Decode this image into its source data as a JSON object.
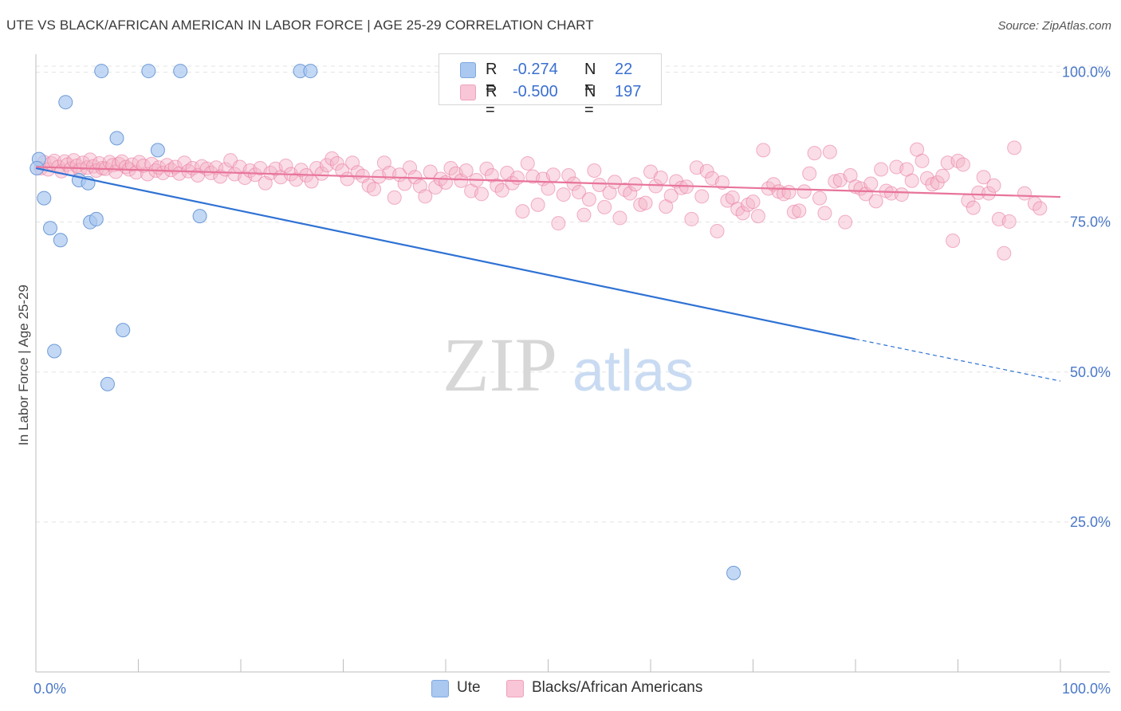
{
  "title": "UTE VS BLACK/AFRICAN AMERICAN IN LABOR FORCE | AGE 25-29 CORRELATION CHART",
  "source": "Source: ZipAtlas.com",
  "watermark": {
    "zip": "ZIP",
    "atlas": "atlas"
  },
  "colors": {
    "ute": "#aac8f0",
    "ute_line": "#2f72d4",
    "black": "#f4b3c8",
    "black_line": "#e8749a",
    "tick": "#4a78c8"
  },
  "legend": {
    "r_label": "R =",
    "n_label": "N =",
    "ute": {
      "r": "-0.274",
      "n": "22"
    },
    "black": {
      "r": "-0.500",
      "n": "197"
    }
  },
  "bottom_legend": {
    "ute": "Ute",
    "black": "Blacks/African Americans"
  },
  "chart_data": {
    "type": "scatter",
    "title": "UTE VS BLACK/AFRICAN AMERICAN IN LABOR FORCE | AGE 25-29 CORRELATION CHART",
    "xlabel": "",
    "ylabel": "In Labor Force | Age 25-29",
    "xlim": [
      0,
      100
    ],
    "ylim": [
      0,
      103
    ],
    "x_tick_labels": [
      "0.0%",
      "100.0%"
    ],
    "y_ticks": [
      25,
      50,
      75,
      100
    ],
    "y_tick_labels": [
      "25.0%",
      "50.0%",
      "75.0%",
      "100.0%"
    ],
    "grid": true,
    "legend_position": "top-center",
    "series": [
      {
        "name": "Ute",
        "points": [
          [
            0.3,
            85.5
          ],
          [
            0.8,
            79
          ],
          [
            1.4,
            74
          ],
          [
            1.8,
            53.5
          ],
          [
            2.4,
            72
          ],
          [
            2.9,
            95
          ],
          [
            4.2,
            82
          ],
          [
            5.1,
            81.5
          ],
          [
            5.3,
            75
          ],
          [
            5.9,
            75.5
          ],
          [
            6.4,
            100.2
          ],
          [
            7,
            48
          ],
          [
            7.9,
            89
          ],
          [
            8.5,
            57
          ],
          [
            11,
            100.2
          ],
          [
            11.9,
            87
          ],
          [
            14.1,
            100.2
          ],
          [
            16,
            76
          ],
          [
            25.8,
            100.2
          ],
          [
            26.8,
            100.2
          ],
          [
            68.1,
            16.5
          ],
          [
            0.1,
            84
          ]
        ],
        "trend": {
          "x": [
            0,
            80
          ],
          "y": [
            84,
            55.5
          ],
          "dashed_to": [
            100,
            48.5
          ]
        }
      },
      {
        "name": "Blacks/African Americans",
        "points": [
          [
            0.5,
            84
          ],
          [
            0.8,
            85
          ],
          [
            1.2,
            83.8
          ],
          [
            1.5,
            84.8
          ],
          [
            1.8,
            85.2
          ],
          [
            2.2,
            84.2
          ],
          [
            2.5,
            83.5
          ],
          [
            2.8,
            85.1
          ],
          [
            3.1,
            84.6
          ],
          [
            3.4,
            83.9
          ],
          [
            3.7,
            85.3
          ],
          [
            4.0,
            84.4
          ],
          [
            4.3,
            83.7
          ],
          [
            4.6,
            84.9
          ],
          [
            5.0,
            84.1
          ],
          [
            5.3,
            85.4
          ],
          [
            5.6,
            84.3
          ],
          [
            5.9,
            83.6
          ],
          [
            6.2,
            84.8
          ],
          [
            6.5,
            84.0
          ],
          [
            6.8,
            83.9
          ],
          [
            7.2,
            85.0
          ],
          [
            7.5,
            84.5
          ],
          [
            7.8,
            83.4
          ],
          [
            8.1,
            84.7
          ],
          [
            8.4,
            85.1
          ],
          [
            8.8,
            84.2
          ],
          [
            9.1,
            83.8
          ],
          [
            9.4,
            84.6
          ],
          [
            9.8,
            83.3
          ],
          [
            10.1,
            85.0
          ],
          [
            10.5,
            84.4
          ],
          [
            10.9,
            83.0
          ],
          [
            11.3,
            84.7
          ],
          [
            11.7,
            83.6
          ],
          [
            12.0,
            84.1
          ],
          [
            12.4,
            83.2
          ],
          [
            12.8,
            84.5
          ],
          [
            13.2,
            83.7
          ],
          [
            13.6,
            84.2
          ],
          [
            14.0,
            83.1
          ],
          [
            14.5,
            84.9
          ],
          [
            14.9,
            83.5
          ],
          [
            15.3,
            84.0
          ],
          [
            15.8,
            82.8
          ],
          [
            16.2,
            84.3
          ],
          [
            16.7,
            83.9
          ],
          [
            17.1,
            83.2
          ],
          [
            17.6,
            84.1
          ],
          [
            18.0,
            82.6
          ],
          [
            18.5,
            83.8
          ],
          [
            19.0,
            85.3
          ],
          [
            19.4,
            83.0
          ],
          [
            19.9,
            84.2
          ],
          [
            20.4,
            82.4
          ],
          [
            20.9,
            83.6
          ],
          [
            21.4,
            82.9
          ],
          [
            21.9,
            84.0
          ],
          [
            22.4,
            81.5
          ],
          [
            22.9,
            83.2
          ],
          [
            23.4,
            83.9
          ],
          [
            23.9,
            82.5
          ],
          [
            24.4,
            84.4
          ],
          [
            24.9,
            83.0
          ],
          [
            25.4,
            82.1
          ],
          [
            25.9,
            83.7
          ],
          [
            26.4,
            82.8
          ],
          [
            26.9,
            81.8
          ],
          [
            27.4,
            84.0
          ],
          [
            27.9,
            83.1
          ],
          [
            28.4,
            84.5
          ],
          [
            28.9,
            85.6
          ],
          [
            29.4,
            84.8
          ],
          [
            29.9,
            83.6
          ],
          [
            30.4,
            82.2
          ],
          [
            30.9,
            84.9
          ],
          [
            31.4,
            83.3
          ],
          [
            31.9,
            82.7
          ],
          [
            32.5,
            81.1
          ],
          [
            33.0,
            80.5
          ],
          [
            33.5,
            82.6
          ],
          [
            34.0,
            84.9
          ],
          [
            34.5,
            83.2
          ],
          [
            35.0,
            79.1
          ],
          [
            35.5,
            82.9
          ],
          [
            36.0,
            81.4
          ],
          [
            36.5,
            84.1
          ],
          [
            37.0,
            82.5
          ],
          [
            37.5,
            81.0
          ],
          [
            38.0,
            79.3
          ],
          [
            38.5,
            83.4
          ],
          [
            39.0,
            80.8
          ],
          [
            39.5,
            82.2
          ],
          [
            40.0,
            81.6
          ],
          [
            40.5,
            84.0
          ],
          [
            41.0,
            83.1
          ],
          [
            41.5,
            81.9
          ],
          [
            42.0,
            83.6
          ],
          [
            42.5,
            80.2
          ],
          [
            43.0,
            82.0
          ],
          [
            43.5,
            79.7
          ],
          [
            44.0,
            83.9
          ],
          [
            44.5,
            82.8
          ],
          [
            45.0,
            81.1
          ],
          [
            45.5,
            80.3
          ],
          [
            46.0,
            83.2
          ],
          [
            46.5,
            81.5
          ],
          [
            47.0,
            82.4
          ],
          [
            47.5,
            76.8
          ],
          [
            48.0,
            84.8
          ],
          [
            48.5,
            82.6
          ],
          [
            49.0,
            77.9
          ],
          [
            49.5,
            82.2
          ],
          [
            50.0,
            80.6
          ],
          [
            50.5,
            82.9
          ],
          [
            51.0,
            74.8
          ],
          [
            51.5,
            79.6
          ],
          [
            52.0,
            82.8
          ],
          [
            52.5,
            81.4
          ],
          [
            53.0,
            80.0
          ],
          [
            53.5,
            76.2
          ],
          [
            54.0,
            78.8
          ],
          [
            54.5,
            83.6
          ],
          [
            55.0,
            81.2
          ],
          [
            55.5,
            77.5
          ],
          [
            56.0,
            79.9
          ],
          [
            56.5,
            81.7
          ],
          [
            57.0,
            75.7
          ],
          [
            57.5,
            80.4
          ],
          [
            58.0,
            79.8
          ],
          [
            58.5,
            81.3
          ],
          [
            59.0,
            77.9
          ],
          [
            59.5,
            78.2
          ],
          [
            60.0,
            83.4
          ],
          [
            60.5,
            81.0
          ],
          [
            61.0,
            82.4
          ],
          [
            61.5,
            77.6
          ],
          [
            62.0,
            79.4
          ],
          [
            62.5,
            81.8
          ],
          [
            63.0,
            80.7
          ],
          [
            63.5,
            80.9
          ],
          [
            64.0,
            75.5
          ],
          [
            64.5,
            84.1
          ],
          [
            65.0,
            79.3
          ],
          [
            65.5,
            83.5
          ],
          [
            66.0,
            82.3
          ],
          [
            66.5,
            73.5
          ],
          [
            67.0,
            81.6
          ],
          [
            67.5,
            78.6
          ],
          [
            68.0,
            79.1
          ],
          [
            68.5,
            77.2
          ],
          [
            69.0,
            76.5
          ],
          [
            69.5,
            77.9
          ],
          [
            70.0,
            78.4
          ],
          [
            70.5,
            76.0
          ],
          [
            71.0,
            87.0
          ],
          [
            71.5,
            80.6
          ],
          [
            72.0,
            81.3
          ],
          [
            72.5,
            80.1
          ],
          [
            73.0,
            79.7
          ],
          [
            73.5,
            80.0
          ],
          [
            74.0,
            76.7
          ],
          [
            74.5,
            76.9
          ],
          [
            75.0,
            80.1
          ],
          [
            75.5,
            83.1
          ],
          [
            76.0,
            86.5
          ],
          [
            76.5,
            79.0
          ],
          [
            77.0,
            76.5
          ],
          [
            77.5,
            86.7
          ],
          [
            78.0,
            81.8
          ],
          [
            78.5,
            82.0
          ],
          [
            79.0,
            75.0
          ],
          [
            79.5,
            82.8
          ],
          [
            80.0,
            80.9
          ],
          [
            80.5,
            80.6
          ],
          [
            81.0,
            79.7
          ],
          [
            81.5,
            81.4
          ],
          [
            82.0,
            78.5
          ],
          [
            82.5,
            83.8
          ],
          [
            83.0,
            80.2
          ],
          [
            83.5,
            79.8
          ],
          [
            84.0,
            84.2
          ],
          [
            84.5,
            79.6
          ],
          [
            85.0,
            83.8
          ],
          [
            85.5,
            81.9
          ],
          [
            86.0,
            87.1
          ],
          [
            86.5,
            85.2
          ],
          [
            87.0,
            82.3
          ],
          [
            87.5,
            81.3
          ],
          [
            88.0,
            81.6
          ],
          [
            88.5,
            82.7
          ],
          [
            89.0,
            84.9
          ],
          [
            89.5,
            71.9
          ],
          [
            90.0,
            85.2
          ],
          [
            90.5,
            84.6
          ],
          [
            91.0,
            78.6
          ],
          [
            91.5,
            77.4
          ],
          [
            92.0,
            79.9
          ],
          [
            92.5,
            82.5
          ],
          [
            93.0,
            79.8
          ],
          [
            93.5,
            81.1
          ],
          [
            94.0,
            75.5
          ],
          [
            94.5,
            69.8
          ],
          [
            95.0,
            75.1
          ],
          [
            95.5,
            87.4
          ],
          [
            96.5,
            79.8
          ],
          [
            97.5,
            78.1
          ],
          [
            98.0,
            77.3
          ]
        ],
        "trend": {
          "x": [
            0,
            100
          ],
          "y": [
            84.2,
            79.2
          ]
        }
      }
    ]
  }
}
